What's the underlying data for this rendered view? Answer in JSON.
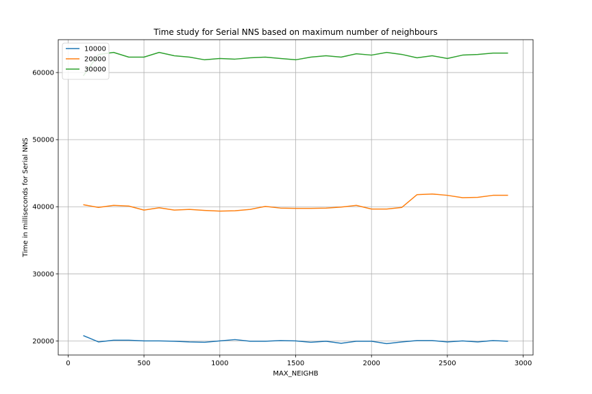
{
  "chart_data": {
    "type": "line",
    "title": "Time study for Serial NNS based on maximum number of neighbours",
    "xlabel": "MAX_NEIGHB",
    "ylabel": "Time in milliseconds for Serial NNS",
    "xlim": [
      -65,
      3065
    ],
    "ylim": [
      17900,
      64900
    ],
    "xticks": [
      0,
      500,
      1000,
      1500,
      2000,
      2500,
      3000
    ],
    "yticks": [
      20000,
      30000,
      40000,
      50000,
      60000
    ],
    "grid": true,
    "legend_position": "top-left",
    "x": [
      100,
      200,
      300,
      400,
      500,
      600,
      700,
      800,
      900,
      1000,
      1100,
      1200,
      1300,
      1400,
      1500,
      1600,
      1700,
      1800,
      1900,
      2000,
      2100,
      2200,
      2300,
      2400,
      2500,
      2600,
      2700,
      2800,
      2900
    ],
    "series": [
      {
        "name": "10000",
        "color": "#1f77b4",
        "values": [
          20800,
          19850,
          20100,
          20100,
          20000,
          20000,
          19950,
          19850,
          19800,
          20000,
          20200,
          19950,
          19950,
          20050,
          20000,
          19800,
          19950,
          19650,
          19950,
          19950,
          19600,
          19850,
          20050,
          20050,
          19850,
          20000,
          19850,
          20050,
          19950
        ]
      },
      {
        "name": "20000",
        "color": "#ff7f0e",
        "values": [
          40300,
          39900,
          40200,
          40100,
          39500,
          39850,
          39500,
          39600,
          39450,
          39350,
          39400,
          39600,
          40050,
          39800,
          39750,
          39750,
          39800,
          39950,
          40200,
          39650,
          39650,
          39900,
          41800,
          41900,
          41700,
          41350,
          41400,
          41700,
          41700
        ]
      },
      {
        "name": "30000",
        "color": "#2ca02c",
        "values": [
          59500,
          62700,
          63000,
          62300,
          62300,
          63000,
          62500,
          62300,
          61900,
          62100,
          62000,
          62200,
          62300,
          62100,
          61900,
          62300,
          62500,
          62300,
          62800,
          62600,
          63000,
          62700,
          62200,
          62500,
          62100,
          62600,
          62700,
          62900,
          62900
        ]
      }
    ]
  }
}
